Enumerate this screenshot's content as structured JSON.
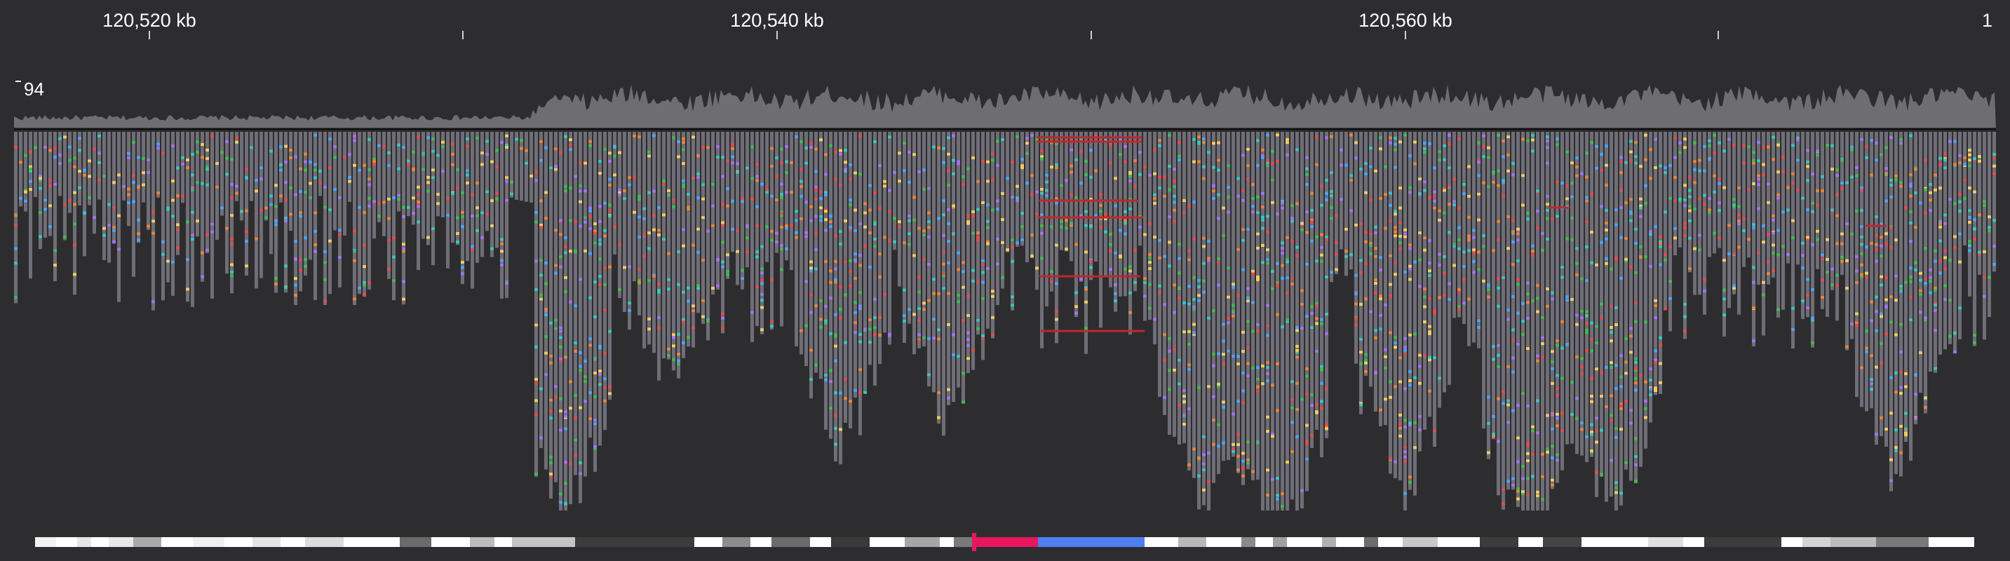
{
  "ruler": {
    "labels": [
      "120,520 kb",
      "120,540 kb",
      "120,560 kb",
      "1"
    ]
  },
  "coverage": {
    "scale_label": "94",
    "color": "#6e6e72"
  },
  "reads": {
    "color": "#6f6e76",
    "mismatch_colors": [
      "#3fb950",
      "#4aa3ff",
      "#e8833a",
      "#e5484d",
      "#a371f7",
      "#f2cc60",
      "#39c5bb"
    ],
    "split_read_color": "#c0262d"
  },
  "ideogram": {
    "highlight_colors": [
      "#e8175d",
      "#4f7ff0"
    ],
    "marker_color": "#e8175d"
  }
}
